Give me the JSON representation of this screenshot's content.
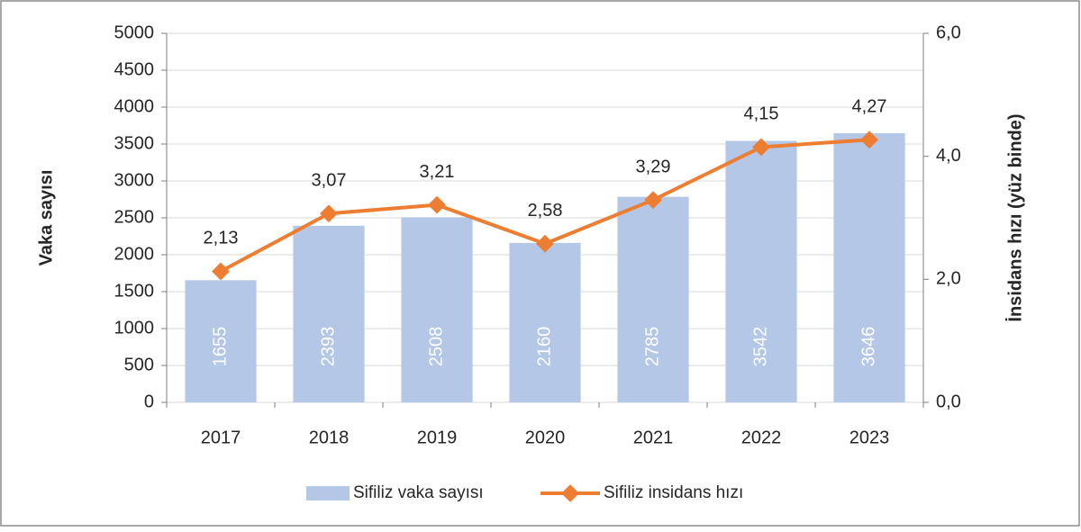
{
  "chart_data": {
    "type": "bar",
    "categories": [
      "2017",
      "2018",
      "2019",
      "2020",
      "2021",
      "2022",
      "2023"
    ],
    "y_label": "Vaka sayısı",
    "y2_label": "İnsidans hızı (yüz binde)",
    "series": [
      {
        "name": "Sifiliz vaka sayısı",
        "type": "bar",
        "color": "#b4c7e7",
        "values": [
          1655,
          2393,
          2508,
          2160,
          2785,
          3542,
          3646
        ]
      },
      {
        "name": "Sifiliz insidans hızı",
        "type": "line",
        "axis": "y2",
        "color": "#ed7d31",
        "values": [
          2.13,
          3.07,
          3.21,
          2.58,
          3.29,
          4.15,
          4.27
        ],
        "value_labels": [
          "2,13",
          "3,07",
          "3,21",
          "2,58",
          "3,29",
          "4,15",
          "4,27"
        ]
      }
    ],
    "ylim": [
      0,
      5000
    ],
    "yticks": [
      0,
      500,
      1000,
      1500,
      2000,
      2500,
      3000,
      3500,
      4000,
      4500,
      5000
    ],
    "y2lim": [
      0,
      6
    ],
    "y2ticks": [
      {
        "value": 0,
        "label": "0,0"
      },
      {
        "value": 2,
        "label": "2,0"
      },
      {
        "value": 4,
        "label": "4,0"
      },
      {
        "value": 6,
        "label": "6,0"
      }
    ],
    "grid": true,
    "legend": "bottom"
  }
}
